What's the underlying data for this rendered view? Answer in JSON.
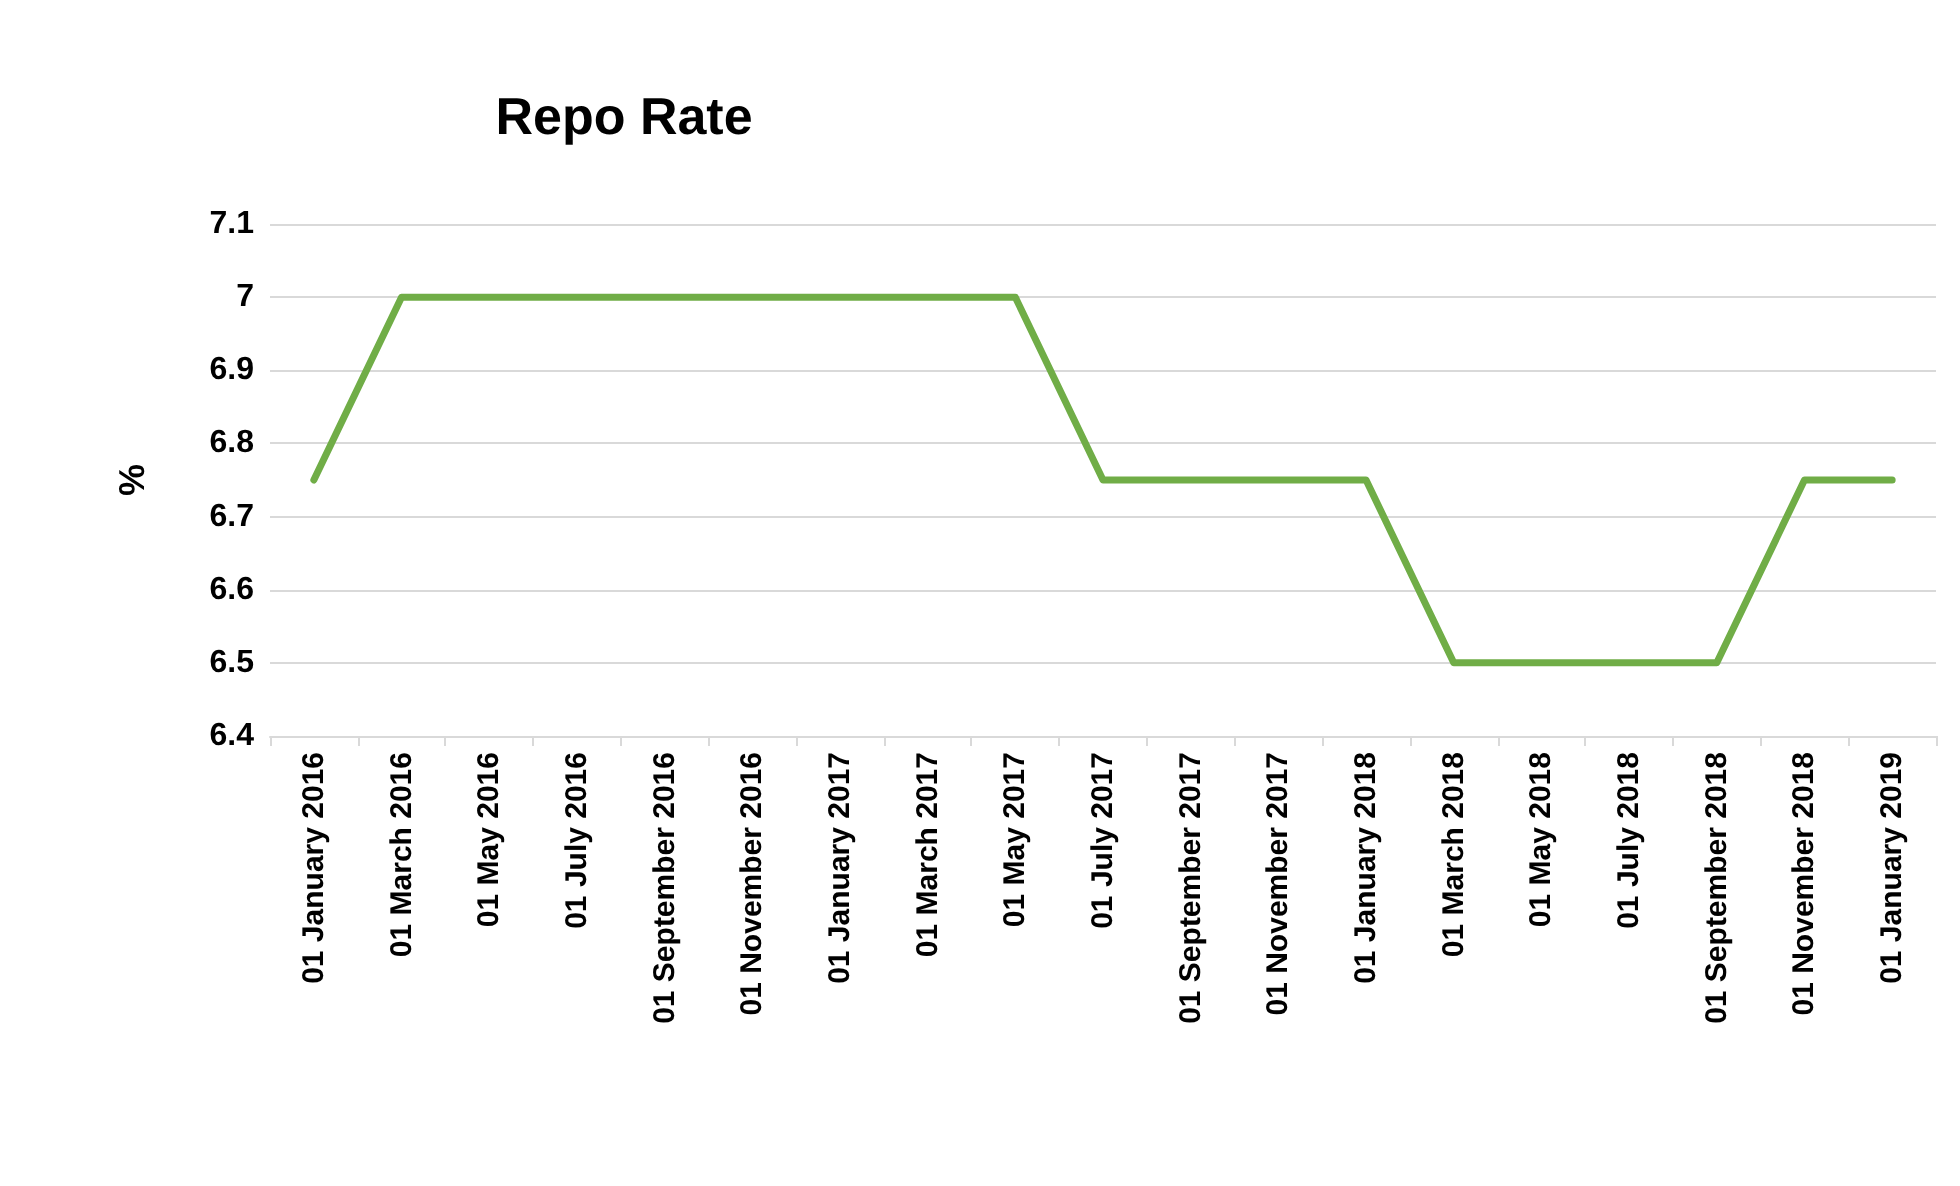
{
  "chart_data": {
    "type": "line",
    "title": "Repo Rate",
    "ylabel": "%",
    "categories": [
      "01 January 2016",
      "01 March 2016",
      "01 May 2016",
      "01 July 2016",
      "01 September 2016",
      "01 November 2016",
      "01 January 2017",
      "01 March 2017",
      "01 May 2017",
      "01 July 2017",
      "01 September 2017",
      "01 November 2017",
      "01 January 2018",
      "01 March 2018",
      "01 May 2018",
      "01 July 2018",
      "01 September 2018",
      "01 November 2018",
      "01 January 2019"
    ],
    "series": [
      {
        "color": "#70ad47",
        "values": [
          6.75,
          7,
          7,
          7,
          7,
          7,
          7,
          7,
          7,
          6.75,
          6.75,
          6.75,
          6.75,
          6.5,
          6.5,
          6.5,
          6.5,
          6.75,
          6.75
        ]
      }
    ],
    "ylim": [
      6.4,
      7.1
    ],
    "yticks": [
      6.4,
      6.5,
      6.6,
      6.7,
      6.8,
      6.9,
      7,
      7.1
    ],
    "grid": "y",
    "marker": "none",
    "line_style": "solid"
  }
}
